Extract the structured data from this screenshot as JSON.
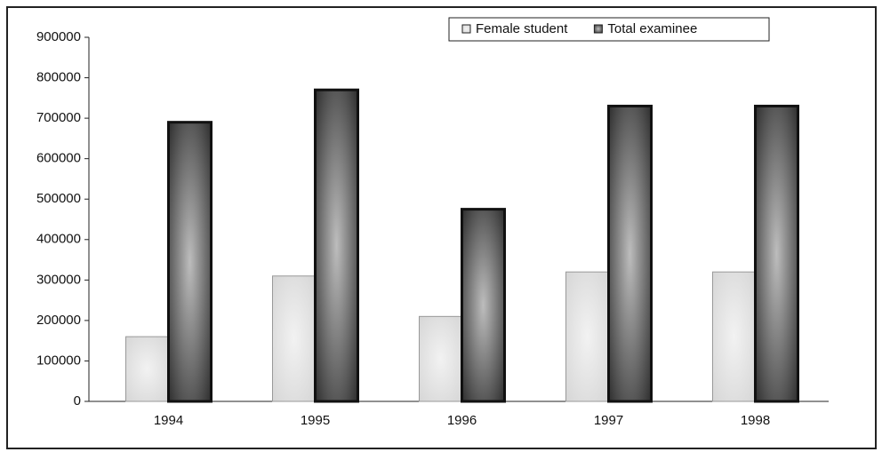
{
  "chart_data": {
    "type": "bar",
    "categories": [
      "1994",
      "1995",
      "1996",
      "1997",
      "1998"
    ],
    "series": [
      {
        "name": "Female student",
        "color": "#d6d6d6",
        "values": [
          160000,
          310000,
          210000,
          320000,
          320000
        ]
      },
      {
        "name": "Total examinee",
        "color": "#2e2e2e",
        "values": [
          690000,
          770000,
          475000,
          730000,
          730000
        ]
      }
    ],
    "ylim": [
      0,
      900000
    ],
    "yticks": [
      0,
      100000,
      200000,
      300000,
      400000,
      500000,
      600000,
      700000,
      800000,
      900000
    ],
    "legend": "top-right",
    "grid": false
  }
}
